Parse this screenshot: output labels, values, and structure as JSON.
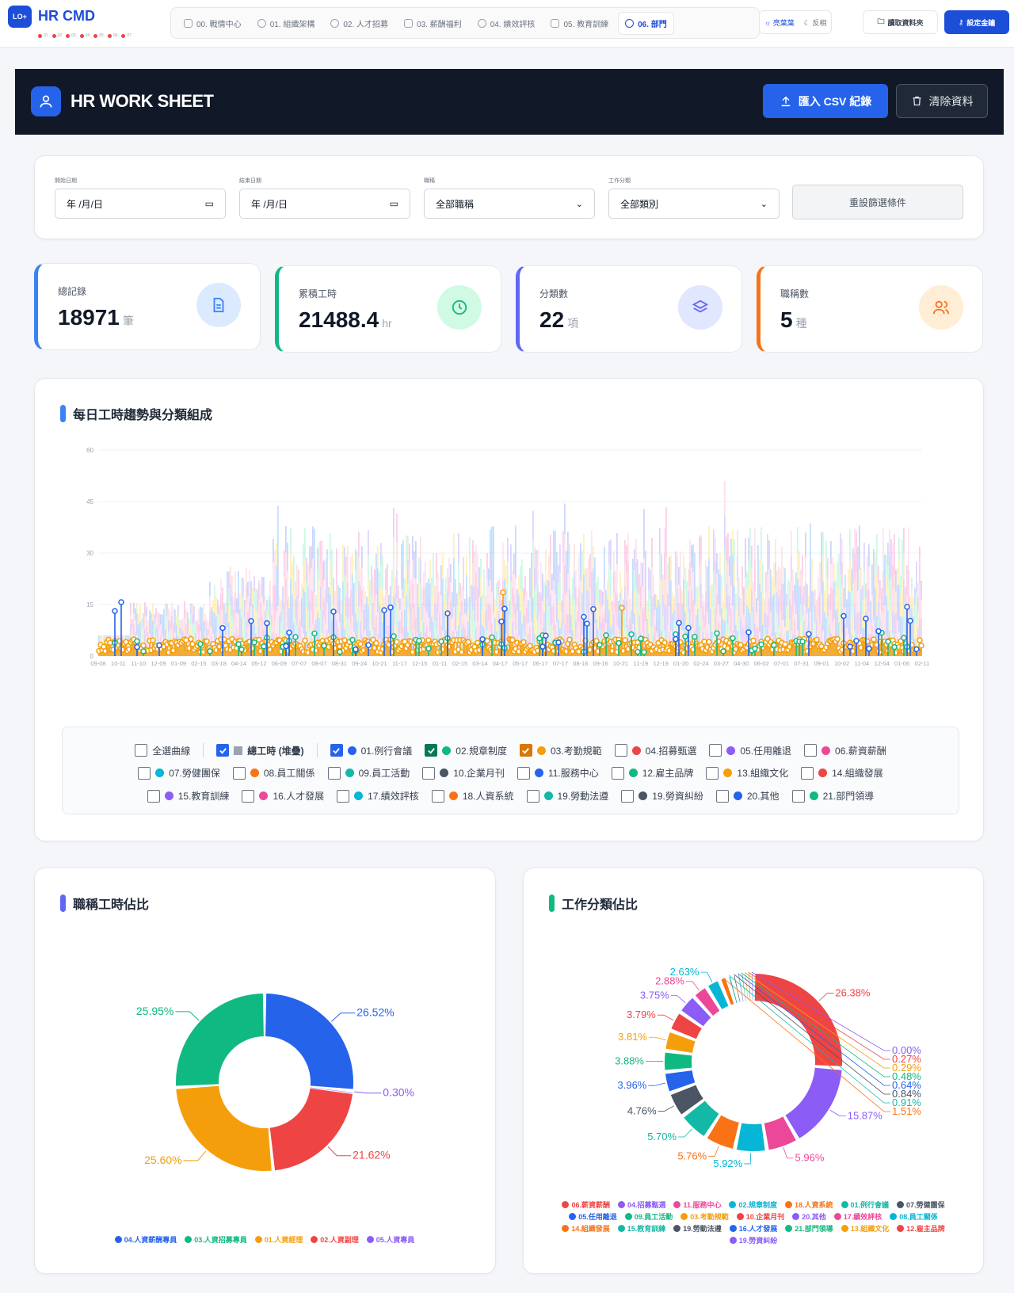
{
  "app": {
    "logo_text": "LO+",
    "brand": "HR CMD",
    "dots": [
      "01",
      "02",
      "03",
      "04",
      "05",
      "06",
      "07"
    ]
  },
  "nav": {
    "tabs": [
      {
        "label": "00. 戰情中心"
      },
      {
        "label": "01. 組織架構"
      },
      {
        "label": "02. 人才招募"
      },
      {
        "label": "03. 薪酬福利"
      },
      {
        "label": "04. 績效評核"
      },
      {
        "label": "05. 教育訓練"
      },
      {
        "label": "06. 部門"
      }
    ],
    "theme_light": "亮葉葉",
    "theme_dark": "反相",
    "folder_label": "讀取資料夾",
    "key_label": "設定金鑰"
  },
  "header": {
    "title": "HR WORK SHEET",
    "import_label": "匯入 CSV 紀錄",
    "clear_label": "清除資料"
  },
  "filters": {
    "start_label": "開始日期",
    "start_value": "年 /月/日",
    "end_label": "結束日期",
    "end_value": "年 /月/日",
    "role_label": "職稱",
    "role_value": "全部職稱",
    "cat_label": "工作分類",
    "cat_value": "全部類別",
    "reset_label": "重設篩選條件"
  },
  "stats": [
    {
      "label": "總記錄",
      "value": "18971",
      "unit": "筆",
      "color": "#3b82f6",
      "bg": "#dbeafe"
    },
    {
      "label": "累積工時",
      "value": "21488.4",
      "unit": "hr",
      "color": "#10b981",
      "bg": "#d1fae5"
    },
    {
      "label": "分類數",
      "value": "22",
      "unit": "項",
      "color": "#6366f1",
      "bg": "#e0e7ff"
    },
    {
      "label": "職稱數",
      "value": "5",
      "unit": "種",
      "color": "#f97316",
      "bg": "#ffedd5"
    }
  ],
  "trend": {
    "title": "每日工時趨勢與分類組成",
    "select_all": "全選曲線",
    "total_label": "總工時 (堆疊)",
    "legend": [
      {
        "name": "01.例行會議",
        "color": "#2563eb",
        "checked": true,
        "cbcolor": "#2563eb"
      },
      {
        "name": "02.規章制度",
        "color": "#10b981",
        "checked": true,
        "cbcolor": "#047857"
      },
      {
        "name": "03.考勤規範",
        "color": "#f59e0b",
        "checked": true,
        "cbcolor": "#d97706"
      },
      {
        "name": "04.招募甄選",
        "color": "#ef4444",
        "checked": false
      },
      {
        "name": "05.任用離退",
        "color": "#8b5cf6",
        "checked": false
      },
      {
        "name": "06.薪資薪酬",
        "color": "#ec4899",
        "checked": false
      },
      {
        "name": "07.勞健團保",
        "color": "#06b6d4",
        "checked": false
      },
      {
        "name": "08.員工關係",
        "color": "#f97316",
        "checked": false
      },
      {
        "name": "09.員工活動",
        "color": "#14b8a6",
        "checked": false
      },
      {
        "name": "10.企業月刊",
        "color": "#4b5563",
        "checked": false
      },
      {
        "name": "11.服務中心",
        "color": "#2563eb",
        "checked": false
      },
      {
        "name": "12.雇主品牌",
        "color": "#10b981",
        "checked": false
      },
      {
        "name": "13.組織文化",
        "color": "#f59e0b",
        "checked": false
      },
      {
        "name": "14.組織發展",
        "color": "#ef4444",
        "checked": false
      },
      {
        "name": "15.教育訓練",
        "color": "#8b5cf6",
        "checked": false
      },
      {
        "name": "16.人才發展",
        "color": "#ec4899",
        "checked": false
      },
      {
        "name": "17.績效評核",
        "color": "#06b6d4",
        "checked": false
      },
      {
        "name": "18.人資系統",
        "color": "#f97316",
        "checked": false
      },
      {
        "name": "19.勞動法遵",
        "color": "#14b8a6",
        "checked": false
      },
      {
        "name": "19.勞資糾紛",
        "color": "#4b5563",
        "checked": false
      },
      {
        "name": "20.其他",
        "color": "#2563eb",
        "checked": false
      },
      {
        "name": "21.部門領導",
        "color": "#10b981",
        "checked": false
      }
    ]
  },
  "chart_data": [
    {
      "type": "bar",
      "title": "每日工時趨勢與分類組成",
      "ylim": [
        0,
        60
      ],
      "yticks": [
        "0",
        "15",
        "30",
        "45",
        "60"
      ],
      "xticks": [
        "09-08",
        "10-11",
        "11-10",
        "12-09",
        "01-09",
        "02-15",
        "03-18",
        "04-14",
        "05-12",
        "06-09",
        "07-07",
        "08-07",
        "08-31",
        "09-24",
        "10-21",
        "11-17",
        "12-15",
        "01-11",
        "02-15",
        "03-14",
        "04-17",
        "05-17",
        "06-17",
        "07-17",
        "08-16",
        "09-16",
        "10-21",
        "11-19",
        "12-19",
        "01-20",
        "02-24",
        "03-27",
        "04-30",
        "06-02",
        "07-01",
        "07-31",
        "09-01",
        "10-02",
        "11-04",
        "12-04",
        "01-06",
        "02-11"
      ],
      "grid": true,
      "series": [
        {
          "name": "總工時 (堆疊)",
          "approx_range": [
            5,
            50
          ]
        },
        {
          "name": "01.例行會議",
          "approx_range": [
            0,
            18
          ]
        },
        {
          "name": "02.規章制度",
          "approx_range": [
            0,
            10
          ]
        },
        {
          "name": "03.考勤規範",
          "approx_range": [
            0,
            19
          ]
        }
      ]
    },
    {
      "type": "pie",
      "title": "職稱工時佔比",
      "labels": [
        "04.人資薪酬專員",
        "03.人資招募專員",
        "01.人資經理",
        "02.人資副理",
        "05.人資專員"
      ],
      "values": [
        26.52,
        25.95,
        25.6,
        21.62,
        0.3
      ],
      "colors": [
        "#2563eb",
        "#10b981",
        "#f59e0b",
        "#ef4444",
        "#8b5cf6"
      ]
    },
    {
      "type": "pie",
      "title": "工作分類佔比",
      "labels": [
        "06.薪資薪酬",
        "04.招募甄選",
        "11.服務中心",
        "02.規章制度",
        "18.人資系統",
        "01.例行會議",
        "07.勞健團保",
        "05.任用離退",
        "09.員工活動",
        "03.考勤規範",
        "10.企業月刊",
        "20.其他",
        "17.績效評核",
        "08.員工關係",
        "14.組織發展",
        "15.教育訓練",
        "19.勞動法遵",
        "16.人才發展",
        "21.部門領導",
        "13.組織文化",
        "12.雇主品牌",
        "19.勞資糾紛"
      ],
      "values": [
        26.38,
        15.87,
        5.96,
        5.92,
        5.76,
        5.7,
        4.76,
        3.96,
        3.88,
        3.81,
        3.79,
        3.75,
        2.88,
        2.63,
        1.51,
        0.91,
        0.84,
        0.64,
        0.48,
        0.29,
        0.27,
        0.0
      ],
      "colors": [
        "#ef4444",
        "#8b5cf6",
        "#ec4899",
        "#06b6d4",
        "#f97316",
        "#14b8a6",
        "#4b5563",
        "#2563eb",
        "#10b981",
        "#f59e0b",
        "#ef4444",
        "#8b5cf6",
        "#ec4899",
        "#06b6d4",
        "#f97316",
        "#14b8a6",
        "#4b5563",
        "#2563eb",
        "#10b981",
        "#f59e0b",
        "#ef4444",
        "#8b5cf6"
      ],
      "pct_labels": [
        "26.38%",
        "15.87%",
        "5.96%",
        "5.92%",
        "5.76%",
        "5.70%",
        "4.76%",
        "3.96%",
        "3.88%",
        "3.81%",
        "3.79%",
        "3.75%",
        "2.88%",
        "2.63%",
        "1.51%",
        "0.91%",
        "0.84%",
        "0.64%",
        "0.48%",
        "0.29%",
        "0.27%",
        "0.00%"
      ]
    }
  ],
  "pie_left": {
    "title": "職稱工時佔比",
    "pct_labels": [
      "26.52%",
      "21.62%",
      "25.60%",
      "25.95%",
      "0.30%"
    ],
    "legend": [
      {
        "name": "04.人資薪酬專員",
        "color": "#2563eb"
      },
      {
        "name": "03.人資招募專員",
        "color": "#10b981"
      },
      {
        "name": "01.人資經理",
        "color": "#f59e0b"
      },
      {
        "name": "02.人資副理",
        "color": "#ef4444"
      },
      {
        "name": "05.人資專員",
        "color": "#8b5cf6"
      }
    ]
  },
  "pie_right": {
    "title": "工作分類佔比",
    "legend": [
      {
        "name": "06.薪資薪酬",
        "color": "#ef4444"
      },
      {
        "name": "04.招募甄選",
        "color": "#8b5cf6"
      },
      {
        "name": "11.服務中心",
        "color": "#ec4899"
      },
      {
        "name": "02.規章制度",
        "color": "#06b6d4"
      },
      {
        "name": "18.人資系統",
        "color": "#f97316"
      },
      {
        "name": "01.例行會議",
        "color": "#14b8a6"
      },
      {
        "name": "07.勞健團保",
        "color": "#4b5563"
      },
      {
        "name": "05.任用離退",
        "color": "#2563eb"
      },
      {
        "name": "09.員工活動",
        "color": "#10b981"
      },
      {
        "name": "03.考勤規範",
        "color": "#f59e0b"
      },
      {
        "name": "10.企業月刊",
        "color": "#ef4444"
      },
      {
        "name": "20.其他",
        "color": "#8b5cf6"
      },
      {
        "name": "17.績效評核",
        "color": "#ec4899"
      },
      {
        "name": "08.員工關係",
        "color": "#06b6d4"
      },
      {
        "name": "14.組織發展",
        "color": "#f97316"
      },
      {
        "name": "15.教育訓練",
        "color": "#14b8a6"
      },
      {
        "name": "19.勞動法遵",
        "color": "#4b5563"
      },
      {
        "name": "16.人才發展",
        "color": "#2563eb"
      },
      {
        "name": "21.部門領導",
        "color": "#10b981"
      },
      {
        "name": "13.組織文化",
        "color": "#f59e0b"
      },
      {
        "name": "12.雇主品牌",
        "color": "#ef4444"
      },
      {
        "name": "19.勞資糾紛",
        "color": "#8b5cf6"
      }
    ]
  }
}
